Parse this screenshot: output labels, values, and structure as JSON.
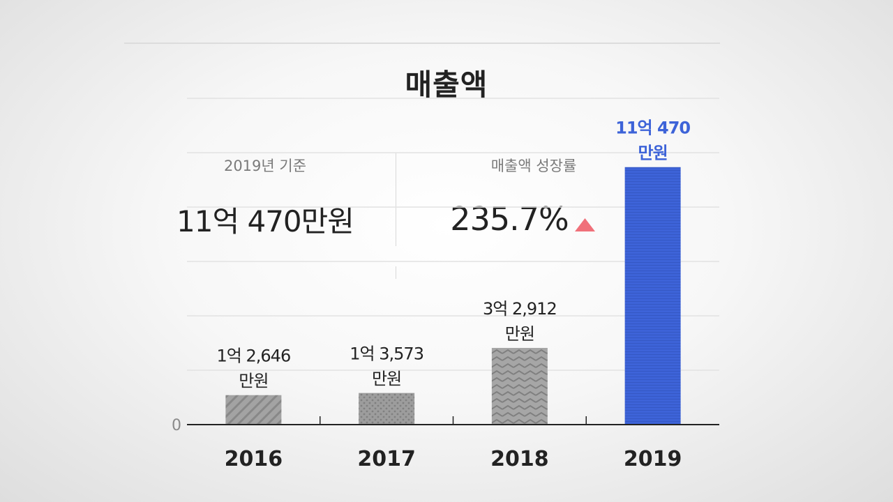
{
  "title": "매출액",
  "summary": {
    "base_label": "2019년 기준",
    "base_value": "11억 470만원",
    "growth_label": "매출액 성장률",
    "growth_value": "235.7%",
    "growth_direction": "up",
    "growth_icon_color": "#f0707a"
  },
  "chart_data": {
    "type": "bar",
    "categories": [
      "2016",
      "2017",
      "2018",
      "2019"
    ],
    "values": [
      12646,
      13573,
      32912,
      110470
    ],
    "unit": "만원",
    "value_labels": [
      [
        "1억 2,646",
        "만원"
      ],
      [
        "1억 3,573",
        "만원"
      ],
      [
        "3억 2,912",
        "만원"
      ],
      [
        "11억 470",
        "만원"
      ]
    ],
    "y_tick_labels": [
      "0"
    ],
    "ylim": [
      0,
      140000
    ],
    "highlight_index": 3,
    "bar_colors": [
      "#9a9a9a",
      "#9a9a9a",
      "#9a9a9a",
      "#3d63d8"
    ],
    "bar_patterns": [
      "diagonal",
      "dots",
      "zigzag",
      "horizontal-lines"
    ],
    "grid": true
  }
}
